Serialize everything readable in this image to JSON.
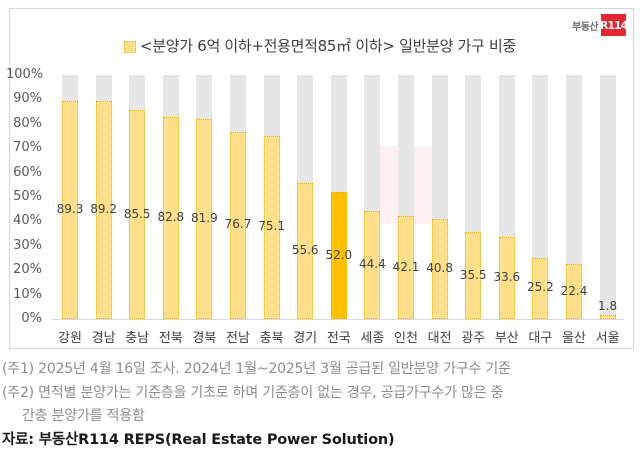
{
  "logo": {
    "text": "부동산",
    "badge": "R114",
    "badge_color": "#e3262f"
  },
  "legend": {
    "label": "<분양가 6억 이하+전용면적85㎡ 이하> 일반분양 가구 비중"
  },
  "y_ticks": [
    "100%",
    "90%",
    "80%",
    "70%",
    "60%",
    "50%",
    "40%",
    "30%",
    "20%",
    "10%",
    "0%"
  ],
  "chart_data": {
    "type": "bar",
    "title": "<분양가 6억 이하+전용면적85㎡ 이하> 일반분양 가구 비중",
    "xlabel": "",
    "ylabel": "",
    "ylim": [
      0,
      100
    ],
    "y_tick_labels": [
      "0%",
      "10%",
      "20%",
      "30%",
      "40%",
      "50%",
      "60%",
      "70%",
      "80%",
      "90%",
      "100%"
    ],
    "categories": [
      "강원",
      "경남",
      "충남",
      "전북",
      "경북",
      "전남",
      "충북",
      "경기",
      "전국",
      "세종",
      "인천",
      "대전",
      "광주",
      "부산",
      "대구",
      "울산",
      "서울"
    ],
    "values": [
      89.3,
      89.2,
      85.5,
      82.8,
      81.9,
      76.7,
      75.1,
      55.6,
      52.0,
      44.4,
      42.1,
      40.8,
      35.5,
      33.6,
      25.2,
      22.4,
      1.8
    ],
    "value_labels": [
      "89.3",
      "89.2",
      "85.5",
      "82.8",
      "81.9",
      "76.7",
      "75.1",
      "55.6",
      "52.0",
      "44.4",
      "42.1",
      "40.8",
      "35.5",
      "33.6",
      "25.2",
      "22.4",
      "1.8"
    ],
    "highlight_category": "전국",
    "background_bar_value": 100,
    "colors": {
      "bar": "#ffdf8a",
      "bar_border": "#e8b500",
      "highlight": "#ffc000",
      "background_bar": "#e6e6e6"
    },
    "grid": false,
    "legend_position": "top"
  },
  "notes": [
    "(주1) 2025년 4월 16일 조사. 2024년 1월~2025년 3월 공급된 일반분양 가구수 기준",
    "(주2) 면적별 분양가는 기준층을 기초로 하며 기준층이 없는 경우, 공급가구수가 많은 중",
    "간층 분양가를 적용함"
  ],
  "source": "자료: 부동산R114 REPS(Real Estate Power Solution)"
}
